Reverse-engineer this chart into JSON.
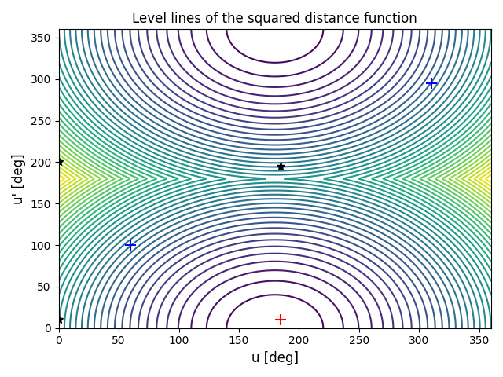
{
  "title": "Level lines of the squared distance function",
  "xlabel": "u [deg]",
  "ylabel": "u' [deg]",
  "xlim": [
    0,
    360
  ],
  "ylim": [
    0,
    360
  ],
  "xticks": [
    0,
    50,
    100,
    150,
    200,
    250,
    300,
    350
  ],
  "yticks": [
    0,
    50,
    100,
    150,
    200,
    250,
    300,
    350
  ],
  "star_points": [
    [
      0,
      200
    ],
    [
      0,
      10
    ],
    [
      185,
      195
    ]
  ],
  "blue_plus_points": [
    [
      60,
      100
    ],
    [
      310,
      295
    ]
  ],
  "red_plus_point": [
    185,
    10
  ],
  "n_contours": 40,
  "colormap": "viridis",
  "u_ref": 180,
  "up_ref": 0,
  "figsize": [
    6.4,
    4.8
  ],
  "dpi": 100
}
